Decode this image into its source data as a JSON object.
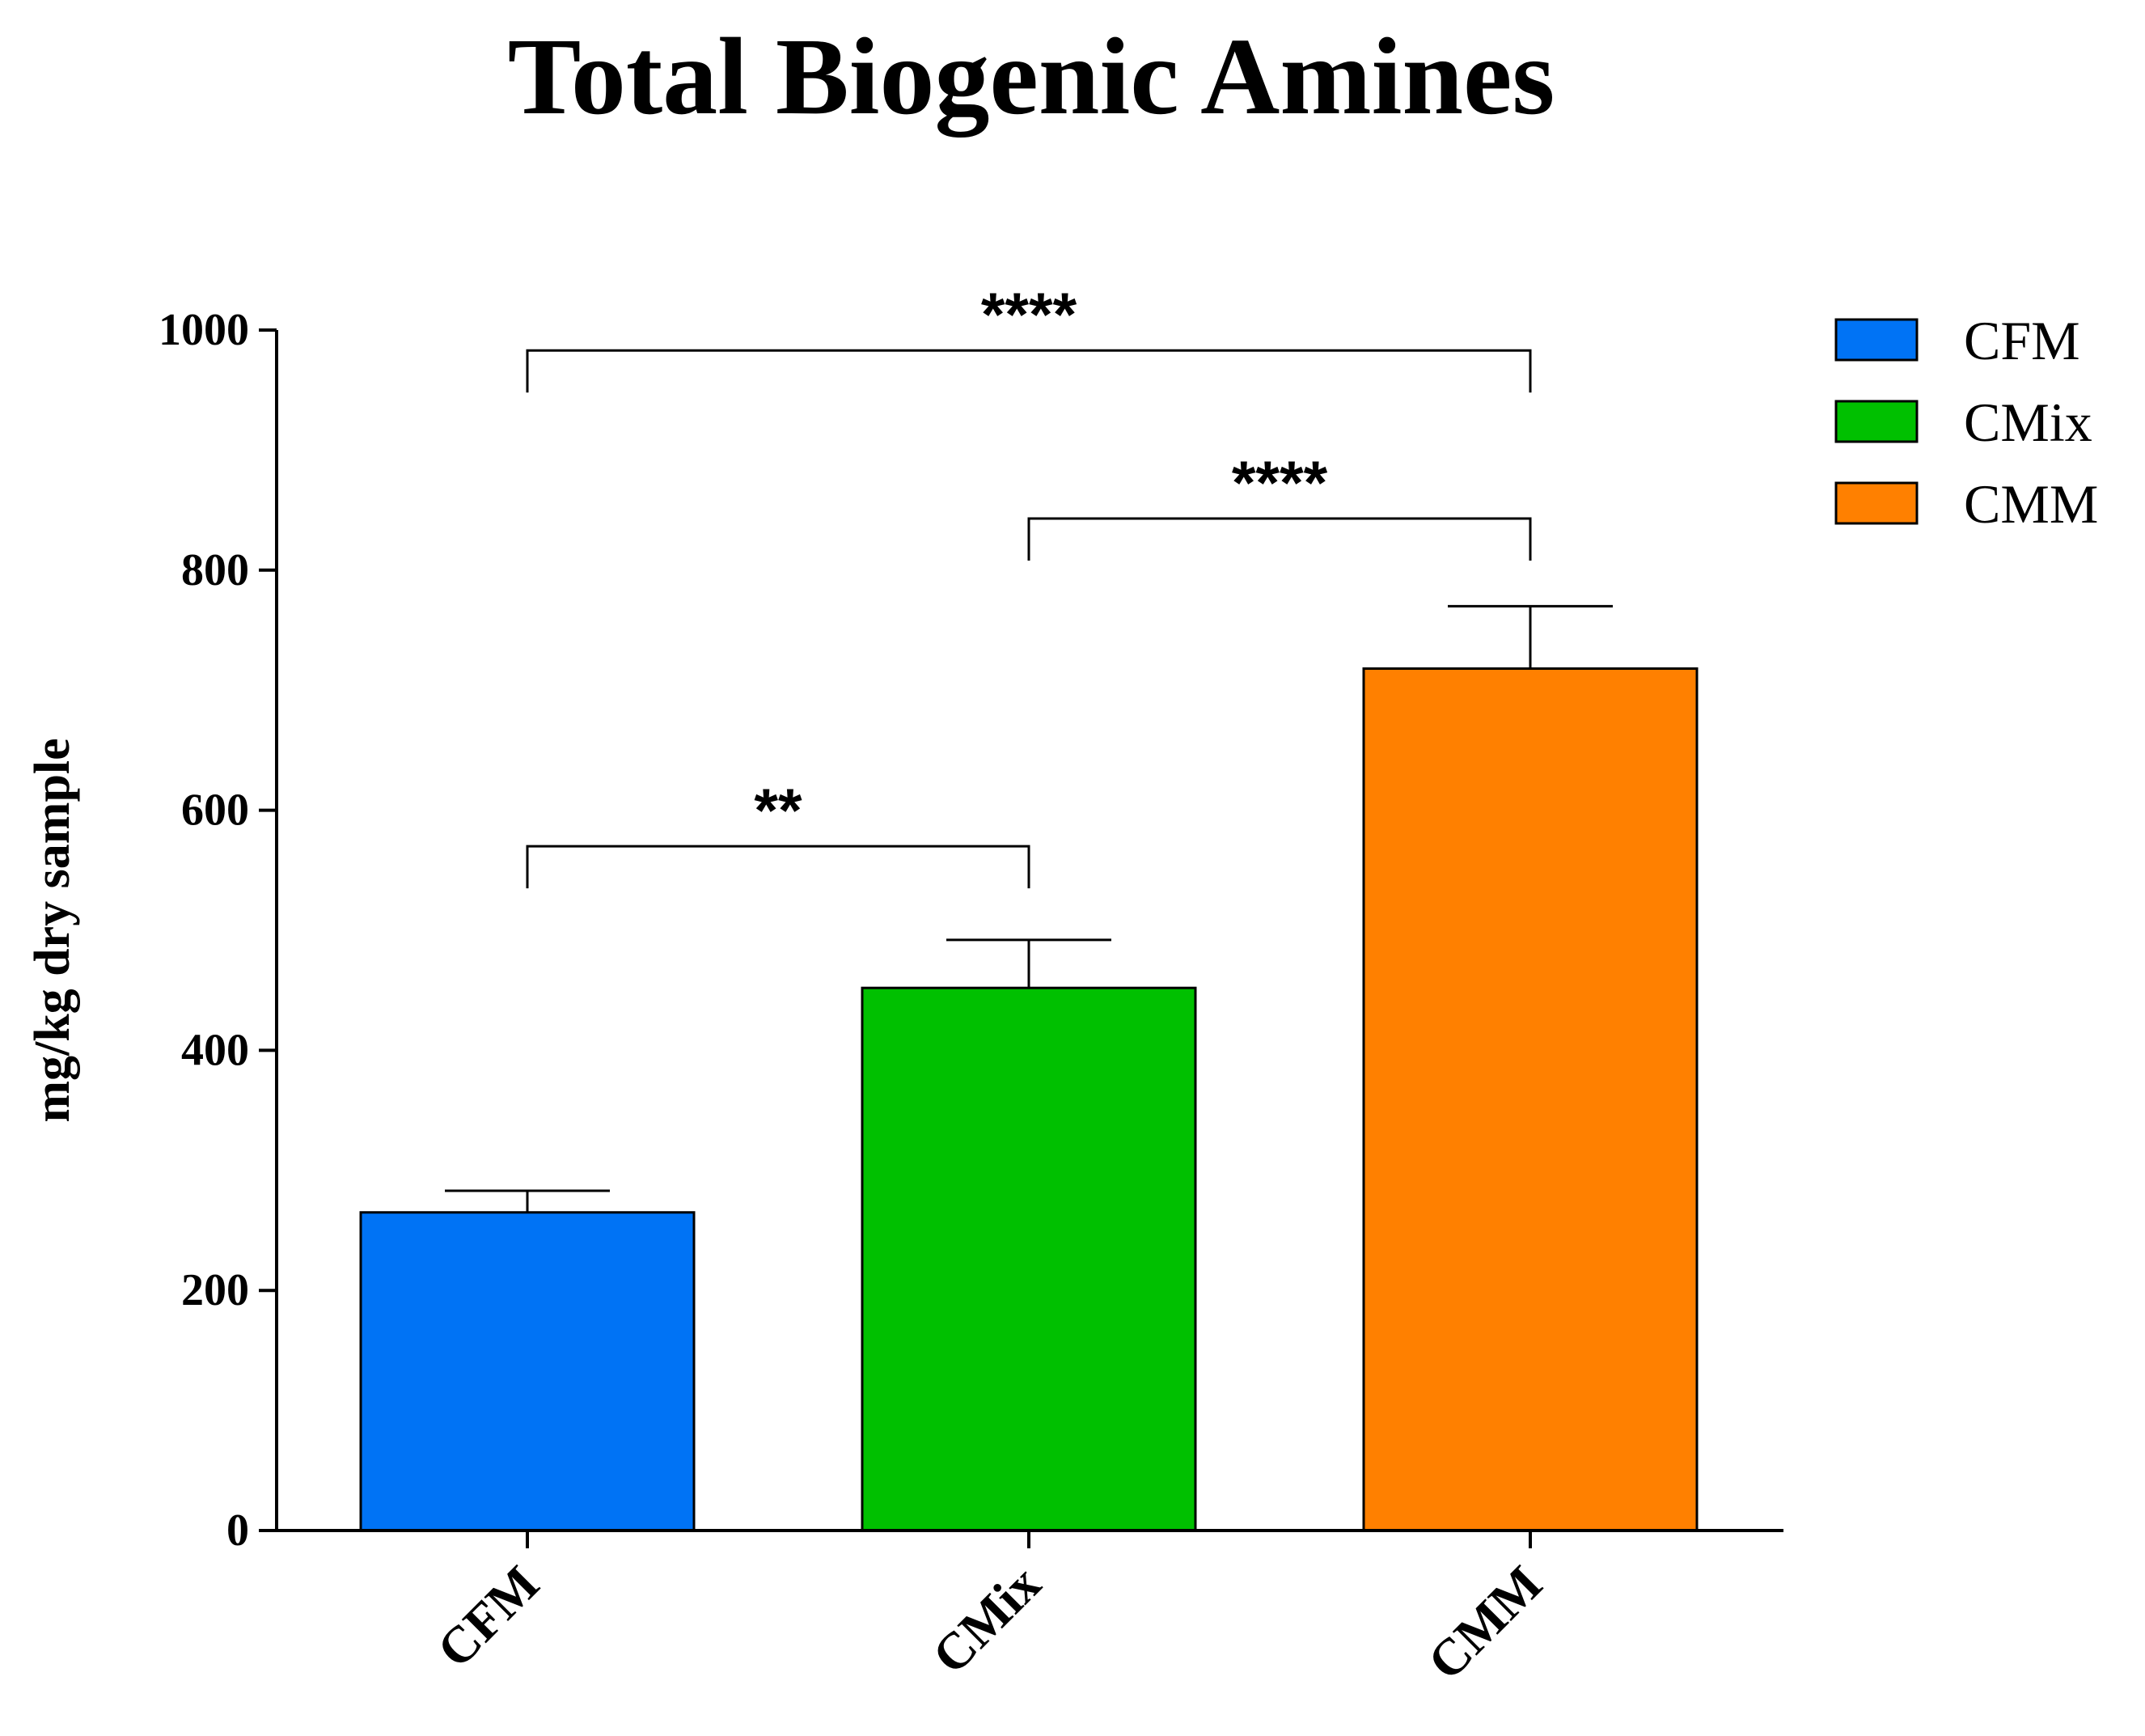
{
  "chart_data": {
    "type": "bar",
    "title": "Total Biogenic Amines",
    "ylabel": "mg/kg dry sample",
    "xlabel": "",
    "ylim": [
      0,
      1000
    ],
    "yticks": [
      0,
      200,
      400,
      600,
      800,
      1000
    ],
    "categories": [
      "CFM",
      "CMix",
      "CMM"
    ],
    "values": [
      265,
      452,
      718
    ],
    "errors": [
      18,
      40,
      52
    ],
    "colors": [
      "#0073F5",
      "#00C000",
      "#FF8000"
    ],
    "legend": {
      "placement": "top-right",
      "entries": [
        {
          "label": "CFM",
          "color": "#0073F5"
        },
        {
          "label": "CMix",
          "color": "#00C000"
        },
        {
          "label": "CMM",
          "color": "#FF8000"
        }
      ]
    },
    "significance": [
      {
        "from": "CFM",
        "to": "CMix",
        "label": "**",
        "y": 570
      },
      {
        "from": "CMix",
        "to": "CMM",
        "label": "****",
        "y": 843
      },
      {
        "from": "CFM",
        "to": "CMM",
        "label": "****",
        "y": 983
      }
    ]
  }
}
